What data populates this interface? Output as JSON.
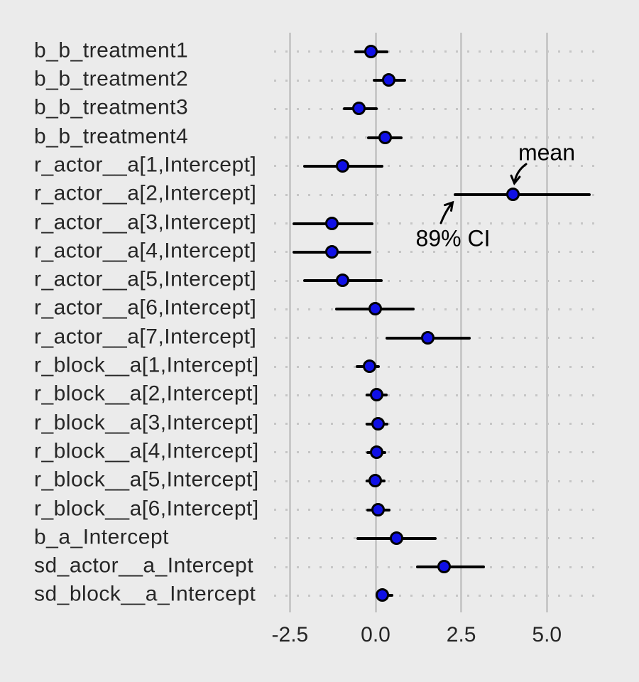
{
  "chart_data": {
    "type": "scatter",
    "subtype": "forest-pointrange",
    "title": "",
    "xlabel": "",
    "ylabel": "",
    "legend_position": "none",
    "grid": "vertical solid gridlines at ticks; horizontal dotted guide per row",
    "point_stat": "mean",
    "interval_label": "89% CI",
    "x_ticks": {
      "values": [
        -2.5,
        0.0,
        2.5,
        5.0
      ],
      "labels": [
        "-2.5",
        "0.0",
        "2.5",
        "5.0"
      ]
    },
    "xlim": [
      -2.95,
      6.55
    ],
    "parameters": [
      {
        "label": "b_b_treatment1",
        "mean": -0.13,
        "lower": -0.63,
        "upper": 0.38
      },
      {
        "label": "b_b_treatment2",
        "mean": 0.4,
        "lower": -0.08,
        "upper": 0.9
      },
      {
        "label": "b_b_treatment3",
        "mean": -0.47,
        "lower": -0.95,
        "upper": 0.06
      },
      {
        "label": "b_b_treatment4",
        "mean": 0.3,
        "lower": -0.24,
        "upper": 0.79
      },
      {
        "label": "r_actor__a[1,Intercept]",
        "mean": -0.96,
        "lower": -2.11,
        "upper": 0.23
      },
      {
        "label": "r_actor__a[2,Intercept]",
        "mean": 4.02,
        "lower": 2.29,
        "upper": 6.28
      },
      {
        "label": "r_actor__a[3,Intercept]",
        "mean": -1.26,
        "lower": -2.42,
        "upper": -0.06
      },
      {
        "label": "r_actor__a[4,Intercept]",
        "mean": -1.26,
        "lower": -2.42,
        "upper": -0.12
      },
      {
        "label": "r_actor__a[5,Intercept]",
        "mean": -0.96,
        "lower": -2.12,
        "upper": 0.2
      },
      {
        "label": "r_actor__a[6,Intercept]",
        "mean": -0.01,
        "lower": -1.18,
        "upper": 1.13
      },
      {
        "label": "r_actor__a[7,Intercept]",
        "mean": 1.53,
        "lower": 0.3,
        "upper": 2.78
      },
      {
        "label": "r_block__a[1,Intercept]",
        "mean": -0.17,
        "lower": -0.57,
        "upper": 0.13
      },
      {
        "label": "r_block__a[2,Intercept]",
        "mean": 0.04,
        "lower": -0.28,
        "upper": 0.35
      },
      {
        "label": "r_block__a[3,Intercept]",
        "mean": 0.08,
        "lower": -0.28,
        "upper": 0.38
      },
      {
        "label": "r_block__a[4,Intercept]",
        "mean": 0.04,
        "lower": -0.26,
        "upper": 0.31
      },
      {
        "label": "r_block__a[5,Intercept]",
        "mean": -0.01,
        "lower": -0.3,
        "upper": 0.3
      },
      {
        "label": "r_block__a[6,Intercept]",
        "mean": 0.09,
        "lower": -0.26,
        "upper": 0.44
      },
      {
        "label": "b_a_Intercept",
        "mean": 0.63,
        "lower": -0.56,
        "upper": 1.78
      },
      {
        "label": "sd_actor__a_Intercept",
        "mean": 2.0,
        "lower": 1.18,
        "upper": 3.19
      },
      {
        "label": "sd_block__a_Intercept",
        "mean": 0.21,
        "lower": 0.03,
        "upper": 0.52
      }
    ],
    "annotations": [
      {
        "text": "mean"
      },
      {
        "text": "89% CI"
      }
    ]
  },
  "colors": {
    "background": "#EBEBEB",
    "gridline": "#C8C8C8",
    "dotted_guide": "#C6C6C6",
    "interval_line": "#000000",
    "point_fill": "#1010E6",
    "point_stroke": "#000000",
    "text": "#262626",
    "annotation_text": "#000000"
  }
}
